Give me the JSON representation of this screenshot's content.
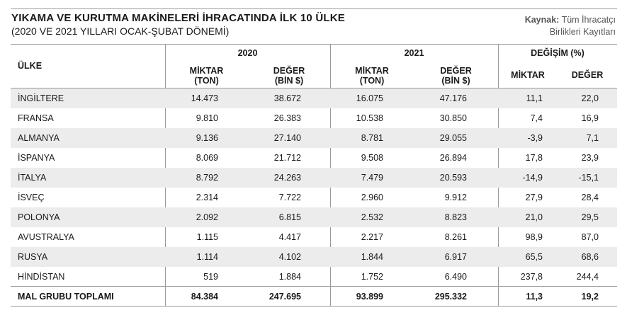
{
  "header": {
    "title": "YIKAMA VE KURUTMA MAKİNELERİ İHRACATINDA İLK 10 ÜLKE",
    "subtitle": "(2020 VE 2021 YILLARI OCAK-ŞUBAT DÖNEMİ)",
    "source_label": "Kaynak:",
    "source_line1": "Tüm İhracatçı",
    "source_line2": "Birlikleri Kayıtları"
  },
  "table": {
    "country_header": "ÜLKE",
    "groups": [
      "2020",
      "2021",
      "DEĞİŞİM (%)"
    ],
    "sub_headers": [
      {
        "line1": "MİKTAR",
        "line2": "(TON)"
      },
      {
        "line1": "DEĞER",
        "line2": "(BİN $)"
      },
      {
        "line1": "MİKTAR",
        "line2": "(TON)"
      },
      {
        "line1": "DEĞER",
        "line2": "(BİN $)"
      },
      {
        "line1": "MİKTAR",
        "line2": ""
      },
      {
        "line1": "DEĞER",
        "line2": ""
      }
    ],
    "rows": [
      [
        "İNGİLTERE",
        "14.473",
        "38.672",
        "16.075",
        "47.176",
        "11,1",
        "22,0"
      ],
      [
        "FRANSA",
        "9.810",
        "26.383",
        "10.538",
        "30.850",
        "7,4",
        "16,9"
      ],
      [
        "ALMANYA",
        "9.136",
        "27.140",
        "8.781",
        "29.055",
        "-3,9",
        "7,1"
      ],
      [
        "İSPANYA",
        "8.069",
        "21.712",
        "9.508",
        "26.894",
        "17,8",
        "23,9"
      ],
      [
        "İTALYA",
        "8.792",
        "24.263",
        "7.479",
        "20.593",
        "-14,9",
        "-15,1"
      ],
      [
        "İSVEÇ",
        "2.314",
        "7.722",
        "2.960",
        "9.912",
        "27,9",
        "28,4"
      ],
      [
        "POLONYA",
        "2.092",
        "6.815",
        "2.532",
        "8.823",
        "21,0",
        "29,5"
      ],
      [
        "AVUSTRALYA",
        "1.115",
        "4.417",
        "2.217",
        "8.261",
        "98,9",
        "87,0"
      ],
      [
        "RUSYA",
        "1.114",
        "4.102",
        "1.844",
        "6.917",
        "65,5",
        "68,6"
      ],
      [
        "HİNDİSTAN",
        "519",
        "1.884",
        "1.752",
        "6.490",
        "237,8",
        "244,4"
      ]
    ],
    "total": [
      "MAL GRUBU TOPLAMI",
      "84.384",
      "247.695",
      "93.899",
      "295.332",
      "11,3",
      "19,2"
    ]
  }
}
